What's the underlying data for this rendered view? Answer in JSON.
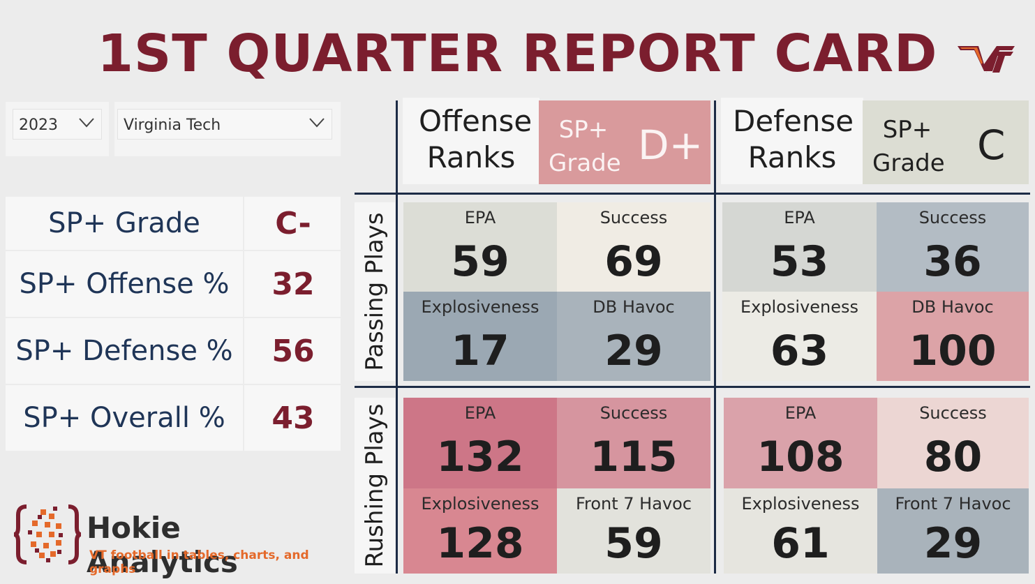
{
  "title": "1ST QUARTER REPORT CARD",
  "logo_text": "VT",
  "filters": {
    "year": "2023",
    "team": "Virginia Tech"
  },
  "sp_summary": [
    {
      "label": "SP+ Grade",
      "value": "C-"
    },
    {
      "label": "SP+ Offense %",
      "value": "32"
    },
    {
      "label": "SP+ Defense %",
      "value": "56"
    },
    {
      "label": "SP+ Overall %",
      "value": "43"
    }
  ],
  "brand": {
    "name": "Hokie Analytics",
    "tagline": "VT football in tables, charts, and graphs"
  },
  "offense": {
    "heading": "Offense Ranks",
    "grade_label": "SP+ Grade",
    "grade": "D+",
    "grade_color": "#d99a9c"
  },
  "defense": {
    "heading": "Defense Ranks",
    "grade_label": "SP+ Grade",
    "grade": "C",
    "grade_color": "#dcddd3"
  },
  "sections": {
    "passing": "Passing Plays",
    "rushing": "Rushing Plays"
  },
  "passing": {
    "offense": [
      {
        "label": "EPA",
        "value": "59",
        "color": "#dcddd6"
      },
      {
        "label": "Success",
        "value": "69",
        "color": "#f0ece4"
      },
      {
        "label": "Explosiveness",
        "value": "17",
        "color": "#9ba8b3"
      },
      {
        "label": "DB Havoc",
        "value": "29",
        "color": "#a9b3bb"
      }
    ],
    "defense": [
      {
        "label": "EPA",
        "value": "53",
        "color": "#d5d7d3"
      },
      {
        "label": "Success",
        "value": "36",
        "color": "#b3bcc4"
      },
      {
        "label": "Explosiveness",
        "value": "63",
        "color": "#ecebe5"
      },
      {
        "label": "DB Havoc",
        "value": "100",
        "color": "#dca3a7"
      }
    ]
  },
  "rushing": {
    "offense": [
      {
        "label": "EPA",
        "value": "132",
        "color": "#cd7687"
      },
      {
        "label": "Success",
        "value": "115",
        "color": "#d6959f"
      },
      {
        "label": "Explosiveness",
        "value": "128",
        "color": "#d88791"
      },
      {
        "label": "Front 7 Havoc",
        "value": "59",
        "color": "#e2e2dc"
      }
    ],
    "defense": [
      {
        "label": "EPA",
        "value": "108",
        "color": "#daa2aa"
      },
      {
        "label": "Success",
        "value": "80",
        "color": "#ecd6d3"
      },
      {
        "label": "Explosiveness",
        "value": "61",
        "color": "#e6e5df"
      },
      {
        "label": "Front 7 Havoc",
        "value": "29",
        "color": "#a9b3bb"
      }
    ]
  }
}
